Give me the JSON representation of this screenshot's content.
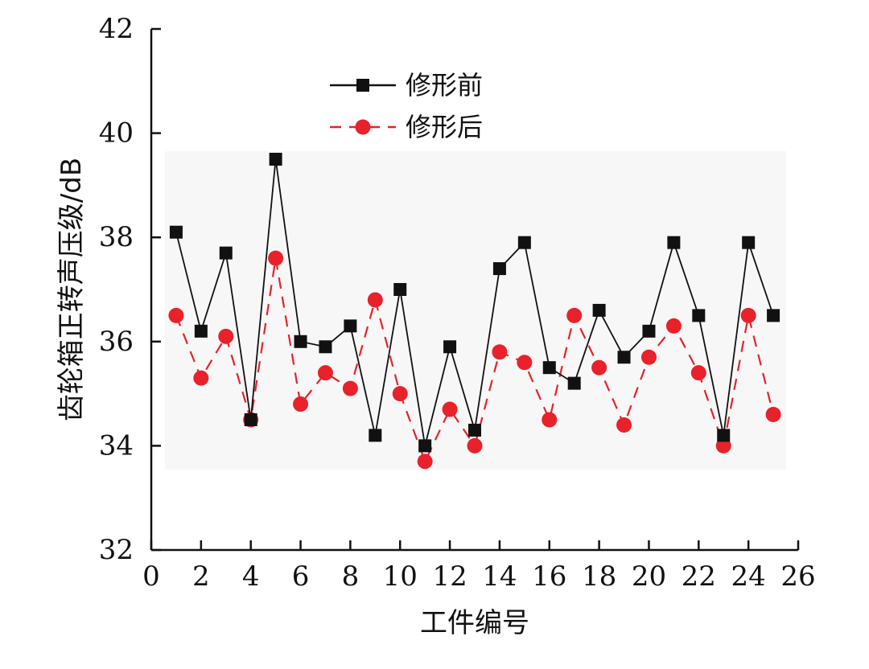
{
  "chart_data": {
    "type": "line",
    "xlabel": "工件编号",
    "ylabel": "齿轮箱正转声压级/dB",
    "xlim": [
      0,
      26
    ],
    "ylim": [
      32,
      42
    ],
    "xticks": [
      "0",
      "2",
      "4",
      "6",
      "8",
      "10",
      "12",
      "14",
      "16",
      "18",
      "20",
      "22",
      "24",
      "26"
    ],
    "yticks": [
      "32",
      "34",
      "36",
      "38",
      "40",
      "42"
    ],
    "x": [
      1,
      2,
      3,
      4,
      5,
      6,
      7,
      8,
      9,
      10,
      11,
      12,
      13,
      14,
      15,
      16,
      17,
      18,
      19,
      20,
      21,
      22,
      23,
      24,
      25
    ],
    "series": [
      {
        "name": "修形前",
        "color": "#111111",
        "marker": "square",
        "line": "solid",
        "values": [
          38.1,
          36.2,
          37.7,
          34.5,
          39.5,
          36.0,
          35.9,
          36.3,
          34.2,
          37.0,
          34.0,
          35.9,
          34.3,
          37.4,
          37.9,
          35.5,
          35.2,
          36.6,
          35.7,
          36.2,
          37.9,
          36.5,
          34.2,
          37.9,
          36.5
        ]
      },
      {
        "name": "修形后",
        "color": "#e8212b",
        "marker": "circle",
        "line": "dashed",
        "values": [
          36.5,
          35.3,
          36.1,
          34.5,
          37.6,
          34.8,
          35.4,
          35.1,
          36.8,
          35.0,
          33.7,
          34.7,
          34.0,
          35.8,
          35.6,
          34.5,
          36.5,
          35.5,
          34.4,
          35.7,
          36.3,
          35.4,
          34.0,
          36.5,
          34.6
        ]
      }
    ],
    "legend_position": "top-left",
    "grid": false
  }
}
